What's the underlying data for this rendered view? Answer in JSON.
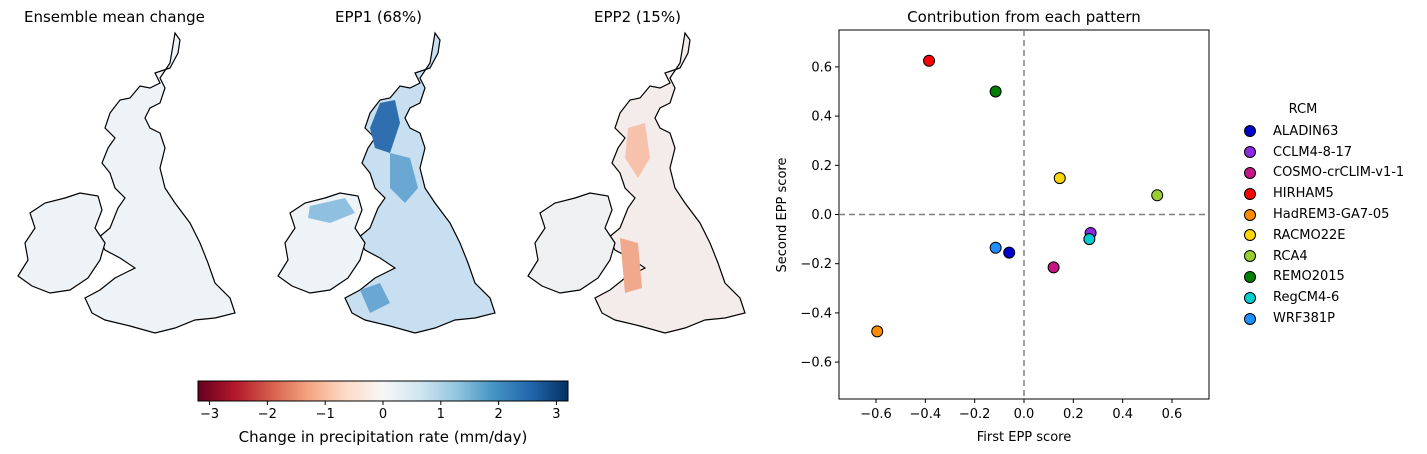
{
  "maps": [
    {
      "title": "Ensemble mean change"
    },
    {
      "title": "EPP1 (68%)"
    },
    {
      "title": "EPP2 (15%)"
    }
  ],
  "colorbar": {
    "label": "Change in precipitation rate (mm/day)",
    "ticks": [
      "−3",
      "−2",
      "−1",
      "0",
      "1",
      "2",
      "3"
    ],
    "tick_values": [
      -3,
      -2,
      -1,
      0,
      1,
      2,
      3
    ],
    "range": [
      -3.2,
      3.2
    ],
    "colormap": "RdBu",
    "colors": [
      "#67001f",
      "#b2182b",
      "#d6604d",
      "#f4a582",
      "#fddbc7",
      "#f7f7f7",
      "#d1e5f0",
      "#92c5de",
      "#4393c3",
      "#2166ac",
      "#053061"
    ]
  },
  "chart_data": {
    "type": "scatter",
    "title": "Contribution from each pattern",
    "xlabel": "First EPP score",
    "ylabel": "Second EPP score",
    "xlim": [
      -0.75,
      0.75
    ],
    "ylim": [
      -0.75,
      0.75
    ],
    "xticks": [
      -0.6,
      -0.4,
      -0.2,
      0.0,
      0.2,
      0.4,
      0.6
    ],
    "yticks": [
      -0.6,
      -0.4,
      -0.2,
      0.0,
      0.2,
      0.4,
      0.6
    ],
    "xtick_labels": [
      "−0.6",
      "−0.4",
      "−0.2",
      "0.0",
      "0.2",
      "0.4",
      "0.6"
    ],
    "ytick_labels": [
      "−0.6",
      "−0.4",
      "−0.2",
      "0.0",
      "0.2",
      "0.4",
      "0.6"
    ],
    "reference_lines": {
      "x": 0,
      "y": 0,
      "style": "dashed",
      "color": "#808080"
    },
    "grid": false,
    "legend_title": "RCM",
    "legend_position": "right",
    "series": [
      {
        "name": "ALADIN63",
        "color": "#0000cd",
        "x": -0.06,
        "y": -0.155
      },
      {
        "name": "CCLM4-8-17",
        "color": "#8a2be2",
        "x": 0.27,
        "y": -0.075
      },
      {
        "name": "COSMO-crCLIM-v1-1",
        "color": "#c71585",
        "x": 0.12,
        "y": -0.215
      },
      {
        "name": "HIRHAM5",
        "color": "#ff0000",
        "x": -0.385,
        "y": 0.625
      },
      {
        "name": "HadREM3-GA7-05",
        "color": "#ff8c00",
        "x": -0.595,
        "y": -0.475
      },
      {
        "name": "RACMO22E",
        "color": "#ffd700",
        "x": 0.145,
        "y": 0.148
      },
      {
        "name": "RCA4",
        "color": "#9acd32",
        "x": 0.54,
        "y": 0.078
      },
      {
        "name": "REMO2015",
        "color": "#008000",
        "x": -0.115,
        "y": 0.5
      },
      {
        "name": "RegCM4-6",
        "color": "#00ced1",
        "x": 0.265,
        "y": -0.1
      },
      {
        "name": "WRF381P",
        "color": "#1e90ff",
        "x": -0.115,
        "y": -0.135
      }
    ]
  }
}
